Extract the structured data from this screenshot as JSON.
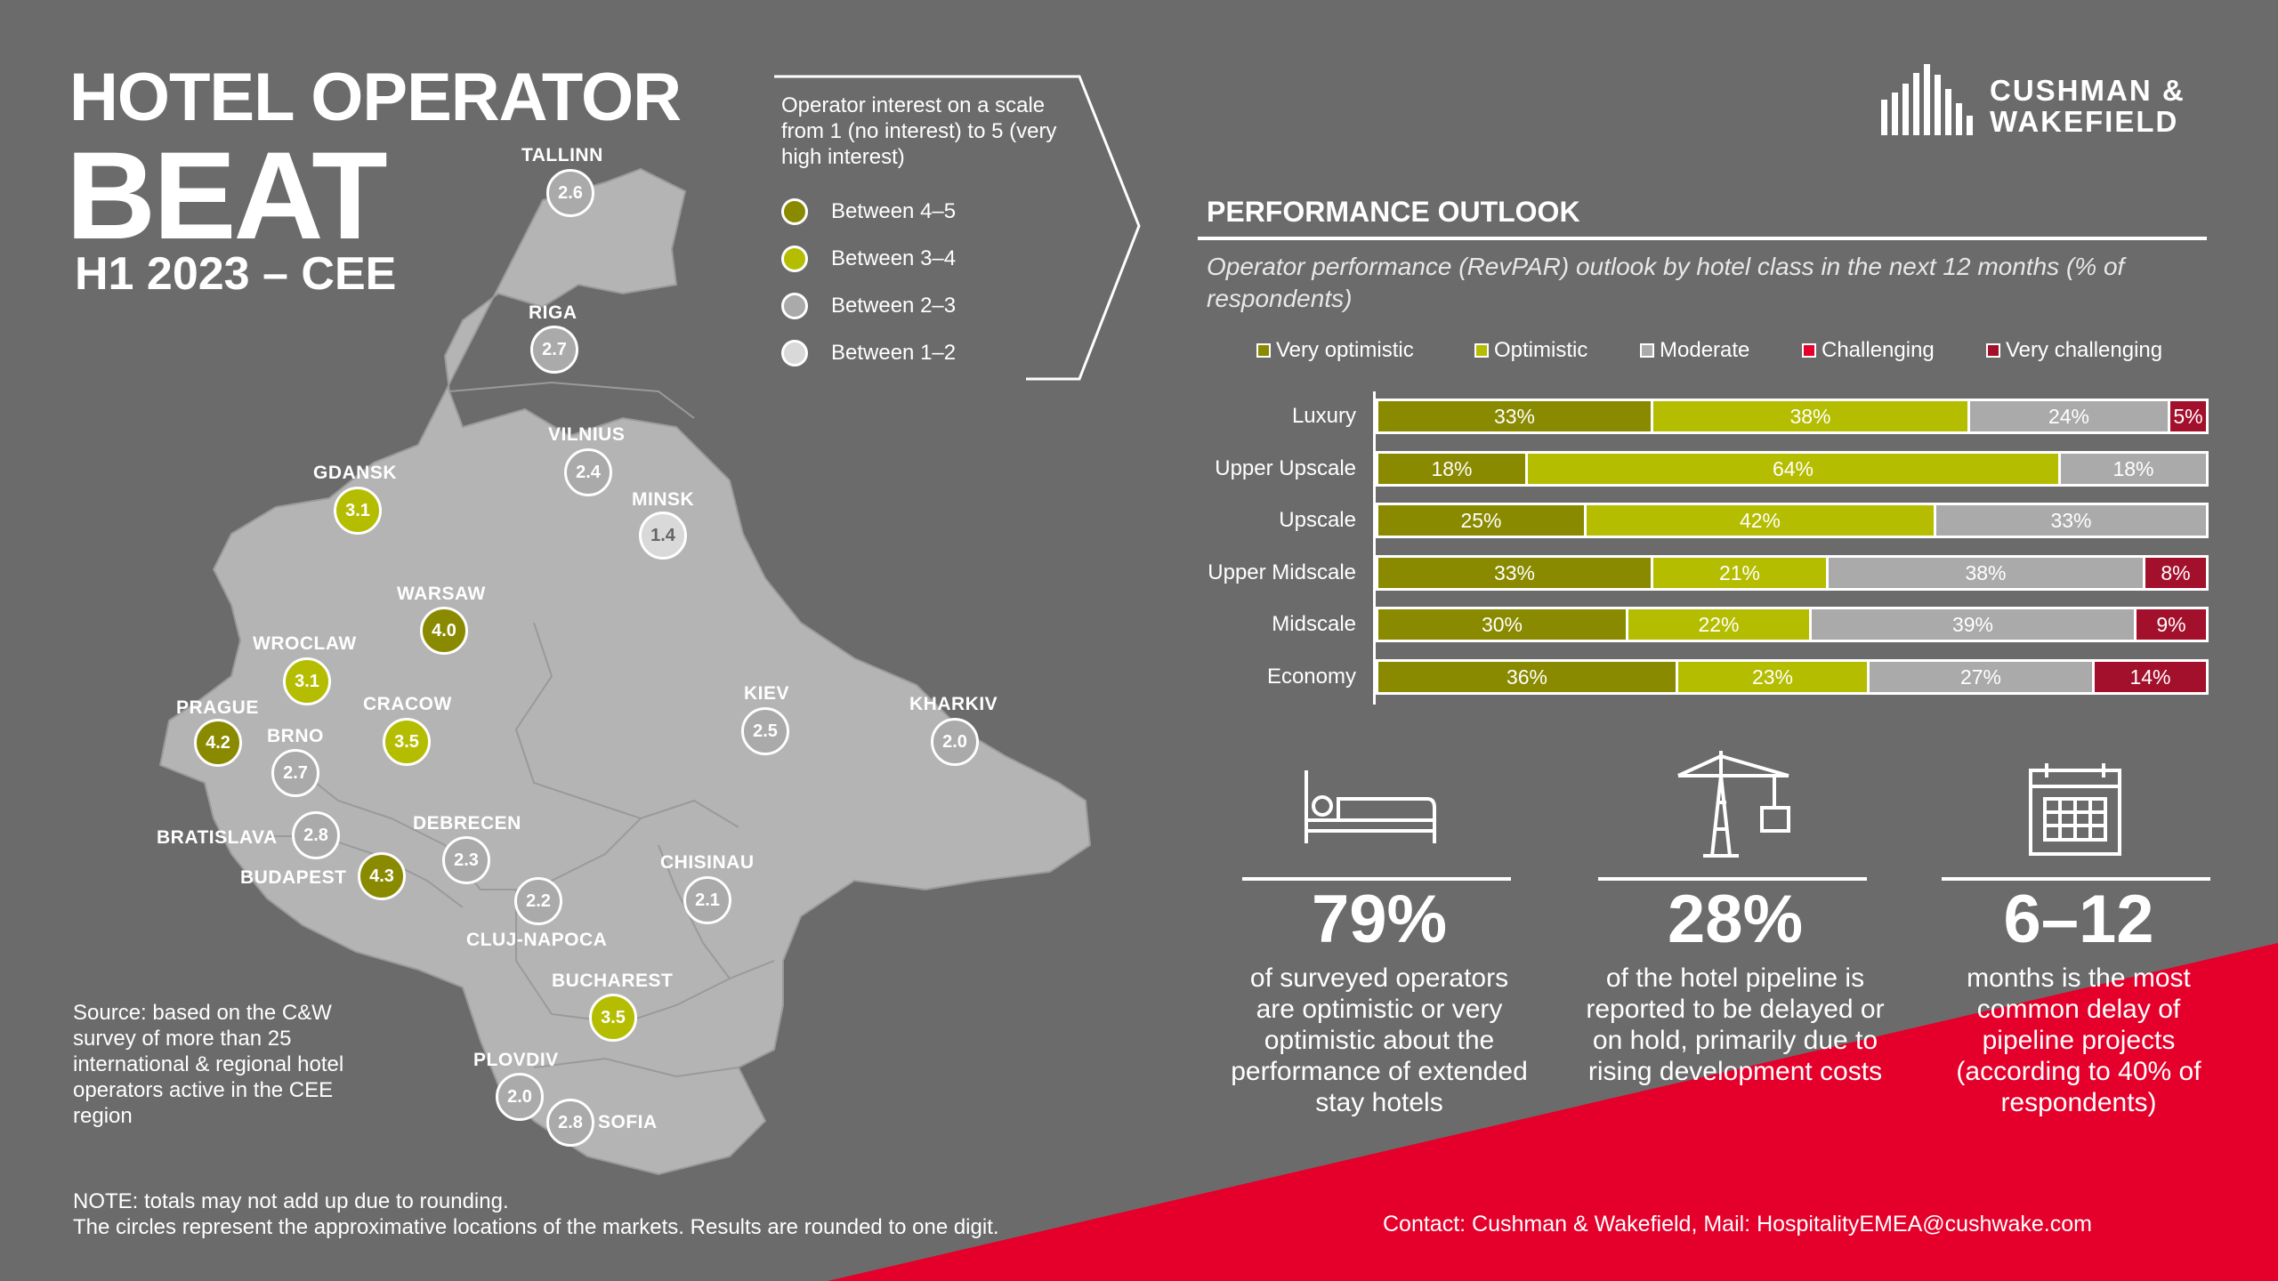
{
  "header": {
    "line1": "HOTEL OPERATOR",
    "line2": "BEAT",
    "line3": "H1 2023 – CEE"
  },
  "legend": {
    "intro": "Operator interest on a scale from 1 (no interest) to 5 (very high interest)",
    "items": [
      {
        "label": "Between 4–5",
        "color": "#8a8a00"
      },
      {
        "label": "Between 3–4",
        "color": "#b5bd00"
      },
      {
        "label": "Between 2–3",
        "color": "#aaaaaa"
      },
      {
        "label": "Between 1–2",
        "color": "#d9d9d9"
      }
    ]
  },
  "logo": {
    "line1": "CUSHMAN &",
    "line2": "WAKEFIELD"
  },
  "map": {
    "cities": [
      {
        "name": "TALLINN",
        "value": "2.6",
        "color": "#aaaaaa"
      },
      {
        "name": "RIGA",
        "value": "2.7",
        "color": "#aaaaaa"
      },
      {
        "name": "VILNIUS",
        "value": "2.4",
        "color": "#aaaaaa"
      },
      {
        "name": "MINSK",
        "value": "1.4",
        "color": "#d9d9d9"
      },
      {
        "name": "GDANSK",
        "value": "3.1",
        "color": "#b5bd00"
      },
      {
        "name": "WARSAW",
        "value": "4.0",
        "color": "#8a8a00"
      },
      {
        "name": "WROCLAW",
        "value": "3.1",
        "color": "#b5bd00"
      },
      {
        "name": "PRAGUE",
        "value": "4.2",
        "color": "#8a8a00"
      },
      {
        "name": "BRNO",
        "value": "2.7",
        "color": "#aaaaaa"
      },
      {
        "name": "CRACOW",
        "value": "3.5",
        "color": "#b5bd00"
      },
      {
        "name": "KIEV",
        "value": "2.5",
        "color": "#aaaaaa"
      },
      {
        "name": "KHARKIV",
        "value": "2.0",
        "color": "#aaaaaa"
      },
      {
        "name": "BRATISLAVA",
        "value": "2.8",
        "color": "#aaaaaa"
      },
      {
        "name": "BUDAPEST",
        "value": "4.3",
        "color": "#8a8a00"
      },
      {
        "name": "DEBRECEN",
        "value": "2.3",
        "color": "#aaaaaa"
      },
      {
        "name": "CLUJ-NAPOCA",
        "value": "2.2",
        "color": "#aaaaaa"
      },
      {
        "name": "CHISINAU",
        "value": "2.1",
        "color": "#aaaaaa"
      },
      {
        "name": "BUCHAREST",
        "value": "3.5",
        "color": "#b5bd00"
      },
      {
        "name": "PLOVDIV",
        "value": "2.0",
        "color": "#aaaaaa"
      },
      {
        "name": "SOFIA",
        "value": "2.8",
        "color": "#aaaaaa"
      }
    ]
  },
  "performance": {
    "title": "PERFORMANCE OUTLOOK",
    "subtitle": "Operator performance (RevPAR) outlook by hotel class in the next 12 months (% of respondents)"
  },
  "chart_data": {
    "type": "bar",
    "orientation": "horizontal",
    "stacked": true,
    "categories": [
      "Luxury",
      "Upper Upscale",
      "Upscale",
      "Upper Midscale",
      "Midscale",
      "Economy"
    ],
    "series": [
      {
        "name": "Very optimistic",
        "color": "#8a8a00",
        "values": [
          33,
          18,
          25,
          33,
          30,
          36
        ],
        "labels": [
          "33%",
          "18%",
          "25%",
          "33%",
          "30%",
          "36%"
        ]
      },
      {
        "name": "Optimistic",
        "color": "#b5bd00",
        "values": [
          38,
          64,
          42,
          21,
          22,
          23
        ],
        "labels": [
          "38%",
          "64%",
          "42%",
          "21%",
          "22%",
          "23%"
        ]
      },
      {
        "name": "Moderate",
        "color": "#aaaaaa",
        "values": [
          24,
          18,
          33,
          38,
          39,
          27
        ],
        "labels": [
          "24%",
          "18%",
          "33%",
          "38%",
          "39%",
          "27%"
        ]
      },
      {
        "name": "Challenging",
        "color": "#e4002b",
        "values": [
          0,
          0,
          0,
          0,
          0,
          0
        ],
        "labels": [
          "",
          "",
          "",
          "",
          "",
          ""
        ]
      },
      {
        "name": "Very challenging",
        "color": "#a3102c",
        "values": [
          5,
          0,
          0,
          8,
          9,
          14
        ],
        "labels": [
          "5%",
          "",
          "",
          "8%",
          "9%",
          "14%"
        ]
      }
    ]
  },
  "stats": [
    {
      "value": "79%",
      "text": "of surveyed operators are optimistic or very optimistic about the performance of extended stay hotels"
    },
    {
      "value": "28%",
      "text": "of the hotel pipeline is reported to be delayed or on hold, primarily due to rising development costs"
    },
    {
      "value": "6–12",
      "text": "months is the most common delay of pipeline projects (according to 40% of respondents)"
    }
  ],
  "footer": {
    "source": "Source: based on the C&W survey of more than 25 international & regional hotel operators active in the CEE region",
    "note1": "NOTE: totals may not add up due to rounding.",
    "note2": "The circles represent the approximative locations of the markets. Results are rounded to one digit.",
    "contact": "Contact: Cushman & Wakefield, Mail: HospitalityEMEA@cushwake.com"
  }
}
